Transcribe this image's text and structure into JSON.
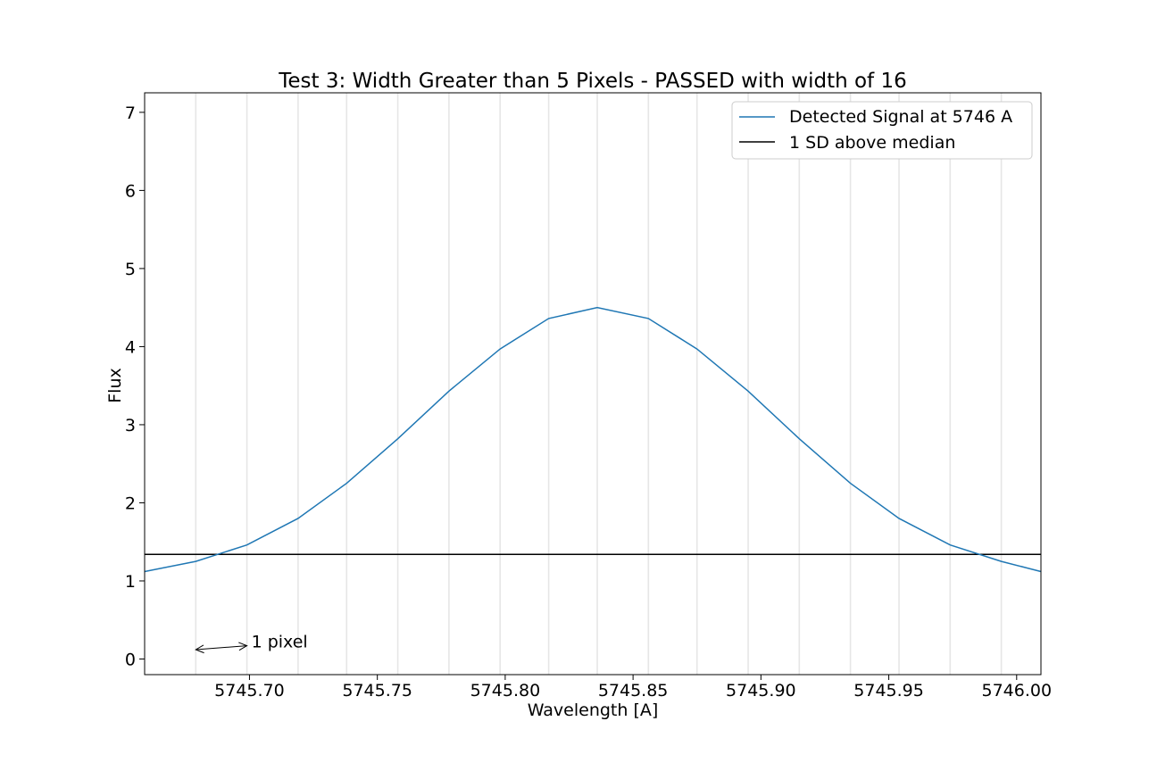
{
  "chart_data": {
    "type": "line",
    "title": "Test 3: Width Greater than 5 Pixels - PASSED with width of 16",
    "xlabel": "Wavelength [A]",
    "ylabel": "Flux",
    "xlim": [
      5745.659,
      5746.0095
    ],
    "ylim": [
      -0.2,
      7.25
    ],
    "xticks": [
      5745.7,
      5745.75,
      5745.8,
      5745.85,
      5745.9,
      5745.95,
      5746.0
    ],
    "xtick_labels": [
      "5745.70",
      "5745.75",
      "5745.80",
      "5745.85",
      "5745.90",
      "5745.95",
      "5746.00"
    ],
    "yticks": [
      0,
      1,
      2,
      3,
      4,
      5,
      6,
      7
    ],
    "ytick_labels": [
      "0",
      "1",
      "2",
      "3",
      "4",
      "5",
      "6",
      "7"
    ],
    "pixel_grid": [
      5745.679,
      5745.699,
      5745.719,
      5745.738,
      5745.758,
      5745.778,
      5745.798,
      5745.817,
      5745.836,
      5745.856,
      5745.875,
      5745.895,
      5745.915,
      5745.935,
      5745.954,
      5745.974,
      5745.994
    ],
    "series": [
      {
        "name": "Detected Signal at 5746 A",
        "color": "#1f77b4",
        "x": [
          5745.659,
          5745.679,
          5745.699,
          5745.719,
          5745.738,
          5745.758,
          5745.778,
          5745.798,
          5745.817,
          5745.836,
          5745.856,
          5745.875,
          5745.895,
          5745.915,
          5745.935,
          5745.954,
          5745.974,
          5745.994,
          5746.0095
        ],
        "y": [
          1.12,
          1.25,
          1.46,
          1.8,
          2.25,
          2.82,
          3.43,
          3.97,
          4.36,
          4.5,
          4.36,
          3.97,
          3.43,
          2.82,
          2.25,
          1.8,
          1.46,
          1.25,
          1.12
        ]
      }
    ],
    "hlines": [
      {
        "name": "1 SD above median",
        "y": 1.34,
        "color": "#000000"
      }
    ],
    "annotations": [
      {
        "text": "1 pixel",
        "arrow_from": [
          5745.679,
          0.12
        ],
        "arrow_to": [
          5745.699,
          0.17
        ]
      }
    ],
    "legend_placement": "upper right",
    "grid": "vertical pixel lines"
  }
}
